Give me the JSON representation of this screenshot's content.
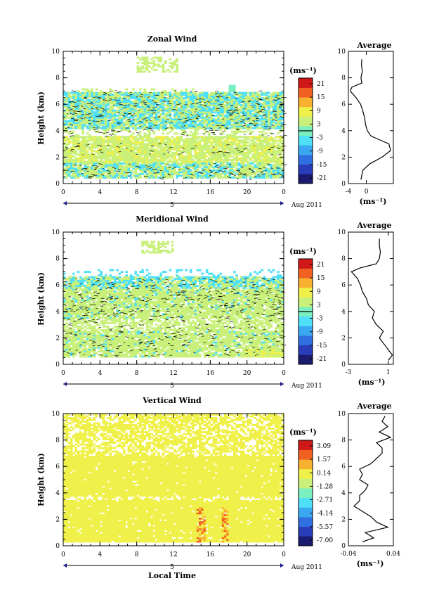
{
  "chart_data": [
    {
      "type": "heatmap",
      "title": "Zonal Wind",
      "ylabel": "Height (km)",
      "xlabel": "",
      "xlim": [
        0,
        24
      ],
      "ylim": [
        0,
        10
      ],
      "xticks": [
        "0",
        "4",
        "8",
        "12",
        "16",
        "20",
        "0"
      ],
      "yticks": [
        "0",
        "2",
        "4",
        "6",
        "8",
        "10"
      ],
      "date_axis": {
        "day": "5",
        "month_label": "Aug 2011"
      },
      "colorbar": {
        "unit_label": "(ms⁻¹)",
        "ticks": [
          "21",
          "15",
          "9",
          "3",
          "-3",
          "-9",
          "-15",
          "-21"
        ],
        "range": [
          -24,
          24
        ]
      },
      "average_profile": {
        "title": "Average",
        "xlim": [
          -4,
          6
        ],
        "xticks": [
          "-4",
          "0"
        ],
        "xlabel": "(ms⁻¹)",
        "heights": [
          0.3,
          1.0,
          1.5,
          2.0,
          2.5,
          3.0,
          3.3,
          3.6,
          4.0,
          4.5,
          5.0,
          5.5,
          6.0,
          6.5,
          7.0,
          7.3,
          7.6,
          8.0,
          8.5,
          9.0,
          9.4
        ],
        "values": [
          -1.2,
          -0.8,
          0.8,
          3.5,
          5.4,
          5.0,
          3.0,
          1.0,
          0.2,
          -0.2,
          -0.4,
          -0.8,
          -1.3,
          -2.3,
          -3.6,
          -3.2,
          -1.0,
          -1.2,
          -0.9,
          -1.1,
          -1.0
        ]
      }
    },
    {
      "type": "heatmap",
      "title": "Meridional Wind",
      "ylabel": "Height (km)",
      "xlabel": "",
      "xlim": [
        0,
        24
      ],
      "ylim": [
        0,
        10
      ],
      "xticks": [
        "0",
        "4",
        "8",
        "12",
        "16",
        "20",
        "0"
      ],
      "yticks": [
        "0",
        "2",
        "4",
        "6",
        "8",
        "10"
      ],
      "date_axis": {
        "day": "5",
        "month_label": "Aug 2011"
      },
      "colorbar": {
        "unit_label": "(ms⁻¹)",
        "ticks": [
          "21",
          "15",
          "9",
          "3",
          "-3",
          "-9",
          "-15",
          "-21"
        ],
        "range": [
          -24,
          24
        ]
      },
      "average_profile": {
        "title": "Average",
        "xlim": [
          -3,
          1.5
        ],
        "xticks": [
          "-3",
          "1"
        ],
        "xlabel": "(ms⁻¹)",
        "heights": [
          0.3,
          0.7,
          1.0,
          1.5,
          2.0,
          2.5,
          3.0,
          3.5,
          4.0,
          4.5,
          5.0,
          5.5,
          6.0,
          6.5,
          7.0,
          7.3,
          7.6,
          8.0,
          8.5,
          9.0,
          9.5
        ],
        "values": [
          1.0,
          1.4,
          1.1,
          0.6,
          0.1,
          0.5,
          -0.2,
          -0.6,
          -0.4,
          -1.0,
          -1.2,
          -1.6,
          -1.8,
          -2.1,
          -2.7,
          -1.8,
          -0.2,
          0.1,
          0.2,
          0.1,
          0.1
        ]
      }
    },
    {
      "type": "heatmap",
      "title": "Vertical Wind",
      "ylabel": "Height (km)",
      "xlabel": "Local Time",
      "xlim": [
        0,
        24
      ],
      "ylim": [
        0,
        10
      ],
      "xticks": [
        "0",
        "4",
        "8",
        "12",
        "16",
        "20",
        "0"
      ],
      "yticks": [
        "0",
        "2",
        "4",
        "6",
        "8",
        "10"
      ],
      "date_axis": {
        "day": "5",
        "month_label": "Aug 2011"
      },
      "colorbar": {
        "unit_label": "(ms⁻¹)",
        "ticks": [
          "3.09",
          "1.57",
          "0.14",
          "-1.28",
          "-2.71",
          "-4.14",
          "-5.57",
          "-7.00"
        ],
        "range": [
          -7.7,
          3.8
        ]
      },
      "average_profile": {
        "title": "Average",
        "xlim": [
          -0.04,
          0.04
        ],
        "xticks": [
          "-0.04",
          "0.04"
        ],
        "xlabel": "(ms⁻¹)",
        "heights": [
          0.3,
          0.6,
          1.0,
          1.4,
          1.8,
          2.2,
          2.6,
          3.0,
          3.4,
          3.8,
          4.2,
          4.6,
          5.0,
          5.4,
          5.8,
          6.2,
          6.6,
          7.0,
          7.4,
          7.8,
          8.2,
          8.6,
          9.0,
          9.4,
          9.8
        ],
        "values": [
          -0.015,
          0.005,
          -0.01,
          0.03,
          0.01,
          0.0,
          -0.015,
          -0.03,
          -0.02,
          -0.02,
          -0.01,
          -0.005,
          -0.02,
          -0.015,
          -0.02,
          0.0,
          0.01,
          0.02,
          0.02,
          0.01,
          0.035,
          0.015,
          0.03,
          0.02,
          0.025
        ]
      }
    }
  ],
  "colors": {
    "colormap": [
      "#1a1a6e",
      "#2a3db8",
      "#2f6fe0",
      "#3aa8f0",
      "#4fe0f8",
      "#7af0c0",
      "#c8f07a",
      "#f0f04a",
      "#f8b030",
      "#f06020",
      "#d01818"
    ],
    "contour": "#000000",
    "date_arrow": "#1a1a8a"
  }
}
